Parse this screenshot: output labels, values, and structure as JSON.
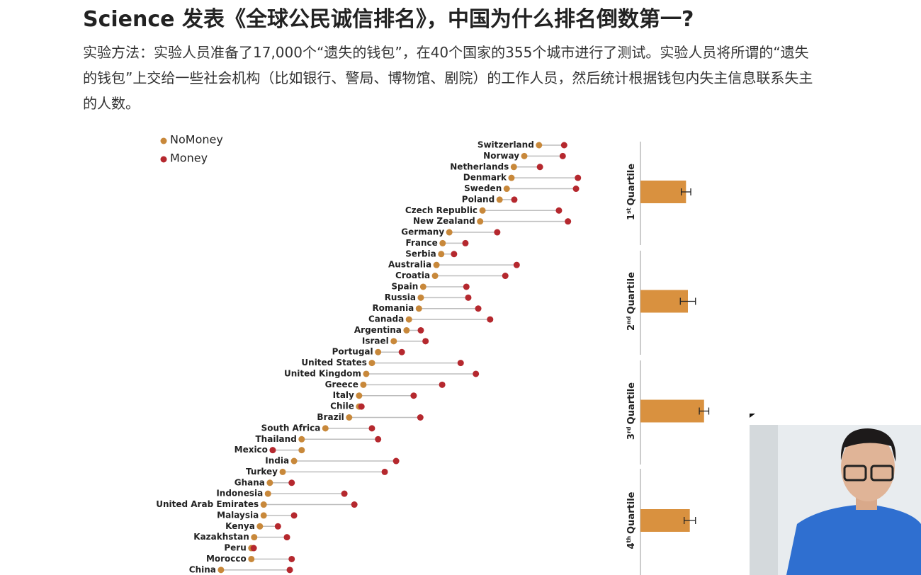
{
  "header": {
    "title": "Science 发表《全球公民诚信排名》，中国为什么排名倒数第一?",
    "description": "实验方法：实验人员准备了17,000个“遗失的钱包”，在40个国家的355个城市进行了测试。实验人员将所谓的“遗失的钱包”上交给一些社会机构（比如银行、警局、博物馆、剧院）的工作人员，然后统计根据钱包内失主信息联系失主的人数。"
  },
  "chart_data": [
    {
      "type": "dumbbell",
      "categories": [
        "Switzerland",
        "Norway",
        "Netherlands",
        "Denmark",
        "Sweden",
        "Poland",
        "Czech Republic",
        "New Zealand",
        "Germany",
        "France",
        "Serbia",
        "Australia",
        "Croatia",
        "Spain",
        "Russia",
        "Romania",
        "Canada",
        "Argentina",
        "Israel",
        "Portugal",
        "United States",
        "United Kingdom",
        "Greece",
        "Italy",
        "Chile",
        "Brazil",
        "South Africa",
        "Thailand",
        "Mexico",
        "India",
        "Turkey",
        "Ghana",
        "Indonesia",
        "United Arab Emirates",
        "Malaysia",
        "Kenya",
        "Kazakhstan",
        "Peru",
        "Morocco",
        "China"
      ],
      "series": [
        {
          "name": "NoMoney",
          "color": "#c8883a",
          "values": [
            74.0,
            70.9,
            68.7,
            68.2,
            67.2,
            65.7,
            62.1,
            61.6,
            55.1,
            53.7,
            53.4,
            52.4,
            52.1,
            49.6,
            49.1,
            48.7,
            46.6,
            46.1,
            43.4,
            40.1,
            38.8,
            37.6,
            37.0,
            36.1,
            36.1,
            34.0,
            29.0,
            24.0,
            24.0,
            22.4,
            20.0,
            17.3,
            16.9,
            16.0,
            16.0,
            15.2,
            14.0,
            13.4,
            13.4,
            7.0
          ]
        },
        {
          "name": "Money",
          "color": "#b5282e",
          "values": [
            79.3,
            79.0,
            74.2,
            82.2,
            81.8,
            68.8,
            78.2,
            80.1,
            65.2,
            58.5,
            56.1,
            69.3,
            66.9,
            58.7,
            59.1,
            61.2,
            63.7,
            49.1,
            50.1,
            45.1,
            57.5,
            60.7,
            53.6,
            47.6,
            36.6,
            49.0,
            38.8,
            40.1,
            17.9,
            43.9,
            41.5,
            21.9,
            33.0,
            35.1,
            22.4,
            19.0,
            20.9,
            13.9,
            21.9,
            21.5
          ]
        }
      ],
      "xlim": [
        0,
        100
      ]
    },
    {
      "type": "bar",
      "categories": [
        {
          "ordinal": "1",
          "suffix": "st",
          "label": "Quartile"
        },
        {
          "ordinal": "2",
          "suffix": "nd",
          "label": "Quartile"
        },
        {
          "ordinal": "3",
          "suffix": "rd",
          "label": "Quartile"
        },
        {
          "ordinal": "4",
          "suffix": "th",
          "label": "Quartile"
        }
      ],
      "values": [
        9.6,
        10.0,
        13.4,
        10.4
      ],
      "errors": [
        1.0,
        1.6,
        1.0,
        1.2
      ],
      "color": "#d9913f",
      "xlim": [
        0,
        20
      ]
    }
  ]
}
